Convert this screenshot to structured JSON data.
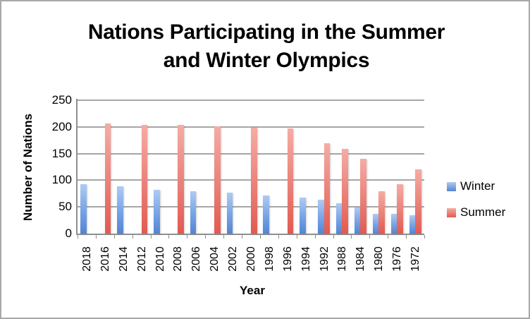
{
  "window": {
    "background": "#ffffff",
    "border_color": "#a9a9a9"
  },
  "colors": {
    "gridline": "#a6a6a6",
    "axis": "#8f8f8f",
    "tick": "#8f8f8f",
    "text": "#000000"
  },
  "chart_data": {
    "type": "bar",
    "title": "Nations Participating in the Summer and Winter Olympics",
    "title_lines": [
      "Nations Participating in the Summer",
      "and Winter Olympics"
    ],
    "xlabel": "Year",
    "ylabel": "Number of Nations",
    "ylim": [
      0,
      250
    ],
    "yticks": [
      0,
      50,
      100,
      150,
      200,
      250
    ],
    "grid": "horizontal-on",
    "legend_position": "right",
    "legend_entries": [
      "Winter",
      "Summer"
    ],
    "categories": [
      "2018",
      "2016",
      "2014",
      "2012",
      "2010",
      "2008",
      "2006",
      "2004",
      "2002",
      "2000",
      "1998",
      "1996",
      "1994",
      "1992",
      "1988",
      "1984",
      "1980",
      "1976",
      "1972"
    ],
    "series": [
      {
        "name": "Winter",
        "color": "#6d9ee6",
        "gradient": [
          "#aecbf3",
          "#76a3e6",
          "#5585d2"
        ],
        "values": [
          92,
          null,
          88,
          null,
          82,
          null,
          80,
          null,
          77,
          null,
          72,
          null,
          67,
          64,
          57,
          49,
          37,
          37,
          35
        ]
      },
      {
        "name": "Summer",
        "color": "#e8756b",
        "gradient": [
          "#f5aca4",
          "#ea8078",
          "#e25a50"
        ],
        "values": [
          null,
          207,
          null,
          204,
          null,
          204,
          null,
          201,
          null,
          199,
          null,
          197,
          null,
          169,
          159,
          140,
          80,
          92,
          121
        ]
      }
    ]
  }
}
